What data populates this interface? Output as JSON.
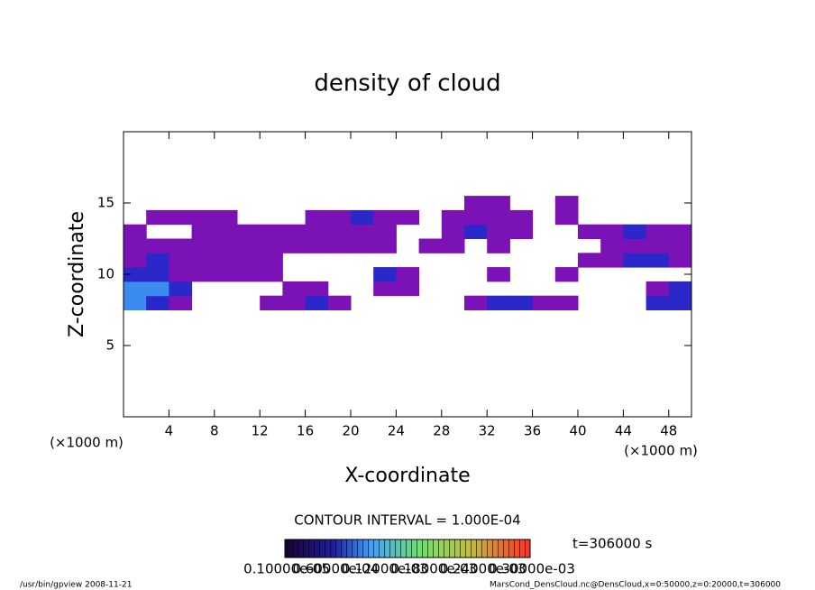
{
  "chart_data": {
    "type": "heatmap",
    "title": "density of cloud",
    "x_label": "X-coordinate",
    "y_label": "Z-coordinate",
    "x_unit_labels": [
      "(×1000 m)",
      "(×1000 m)"
    ],
    "xlim": [
      0,
      50
    ],
    "ylim": [
      0,
      20
    ],
    "xticks": [
      4,
      8,
      12,
      16,
      20,
      24,
      28,
      32,
      36,
      40,
      44,
      48
    ],
    "yticks": [
      5,
      10,
      15
    ],
    "x": [
      1,
      3,
      5,
      7,
      9,
      11,
      13,
      15,
      17,
      19,
      21,
      23,
      25,
      27,
      29,
      31,
      33,
      35,
      37,
      39,
      41,
      43,
      45,
      47,
      49
    ],
    "y": [
      8,
      9,
      10,
      11,
      12,
      13,
      14,
      15
    ],
    "values": [
      [
        0.00018,
        0.00012,
        7e-05,
        null,
        null,
        null,
        7e-05,
        7e-05,
        0.00012,
        7e-05,
        null,
        null,
        null,
        null,
        null,
        7e-05,
        0.00012,
        0.00012,
        7e-05,
        7e-05,
        null,
        null,
        null,
        0.00012,
        0.00012
      ],
      [
        0.00018,
        0.00018,
        0.00012,
        null,
        null,
        null,
        null,
        7e-05,
        7e-05,
        null,
        null,
        7e-05,
        7e-05,
        null,
        null,
        null,
        null,
        null,
        null,
        null,
        null,
        null,
        null,
        7e-05,
        0.00012
      ],
      [
        0.00012,
        0.00012,
        7e-05,
        7e-05,
        7e-05,
        7e-05,
        7e-05,
        null,
        null,
        null,
        null,
        0.00012,
        7e-05,
        null,
        null,
        null,
        7e-05,
        null,
        null,
        7e-05,
        null,
        null,
        null,
        null,
        null
      ],
      [
        7e-05,
        0.00012,
        7e-05,
        7e-05,
        7e-05,
        7e-05,
        7e-05,
        null,
        null,
        null,
        null,
        null,
        null,
        null,
        null,
        null,
        null,
        null,
        null,
        null,
        7e-05,
        7e-05,
        0.00012,
        0.00012,
        7e-05
      ],
      [
        7e-05,
        7e-05,
        7e-05,
        7e-05,
        7e-05,
        7e-05,
        7e-05,
        7e-05,
        7e-05,
        7e-05,
        7e-05,
        7e-05,
        null,
        7e-05,
        7e-05,
        null,
        7e-05,
        null,
        null,
        null,
        null,
        7e-05,
        7e-05,
        7e-05,
        7e-05
      ],
      [
        7e-05,
        null,
        null,
        7e-05,
        7e-05,
        7e-05,
        7e-05,
        7e-05,
        7e-05,
        7e-05,
        7e-05,
        7e-05,
        null,
        null,
        7e-05,
        0.00012,
        7e-05,
        7e-05,
        null,
        null,
        7e-05,
        7e-05,
        0.00012,
        7e-05,
        7e-05
      ],
      [
        null,
        7e-05,
        7e-05,
        7e-05,
        7e-05,
        null,
        null,
        null,
        7e-05,
        7e-05,
        0.00012,
        7e-05,
        7e-05,
        null,
        7e-05,
        7e-05,
        7e-05,
        7e-05,
        null,
        7e-05,
        null,
        null,
        null,
        null,
        null
      ],
      [
        null,
        null,
        null,
        null,
        null,
        null,
        null,
        null,
        null,
        null,
        null,
        null,
        null,
        null,
        null,
        7e-05,
        7e-05,
        null,
        null,
        7e-05,
        null,
        null,
        null,
        null,
        null
      ]
    ],
    "color_levels": [
      5e-05,
      0.0001,
      0.00015
    ],
    "color_steps": [
      "#7a12b5",
      "#2a28c8",
      "#3c8cf0"
    ],
    "contour_label": "CONTOUR INTERVAL = 1.000E-04",
    "colorbar_labels": [
      "0.10000e-05",
      "0.60000e-04",
      "0.12000e-03",
      "0.18000e-03",
      "0.24000e-03",
      "0.30000e-03"
    ],
    "time_label": "t=306000 s",
    "footer_left": "/usr/bin/gpview   2008-11-21",
    "footer_right": "MarsCond_DensCloud.nc@DensCloud,x=0:50000,z=0:20000,t=306000"
  }
}
